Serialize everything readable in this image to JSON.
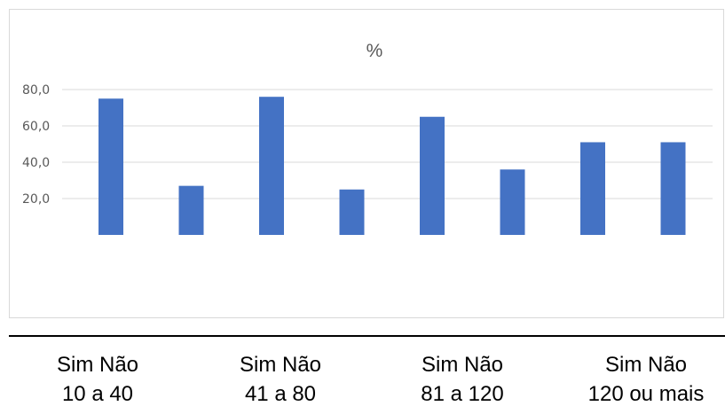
{
  "chart_data": {
    "type": "bar",
    "title": "%",
    "xlabel": "",
    "ylabel": "",
    "categories": [
      "Sim",
      "Não",
      "Sim",
      "Não",
      "Sim",
      "Não",
      "Sim",
      "Não"
    ],
    "groups": [
      "10 a 40",
      "41 a 80",
      "81 a 120",
      "120 ou mais"
    ],
    "group_header": "Sim  Não",
    "values": [
      75.0,
      27.0,
      76.0,
      25.0,
      65.0,
      36.0,
      51.0,
      51.0
    ],
    "yticks": [
      "20,0",
      "40,0",
      "60,0",
      "80,0"
    ],
    "ylim": [
      0,
      80
    ],
    "grid": true,
    "colors": {
      "bar": "#4472C4",
      "grid": "#D9D9D9",
      "text": "#595959",
      "border": "#D9D9D9",
      "rule": "#000000"
    }
  }
}
